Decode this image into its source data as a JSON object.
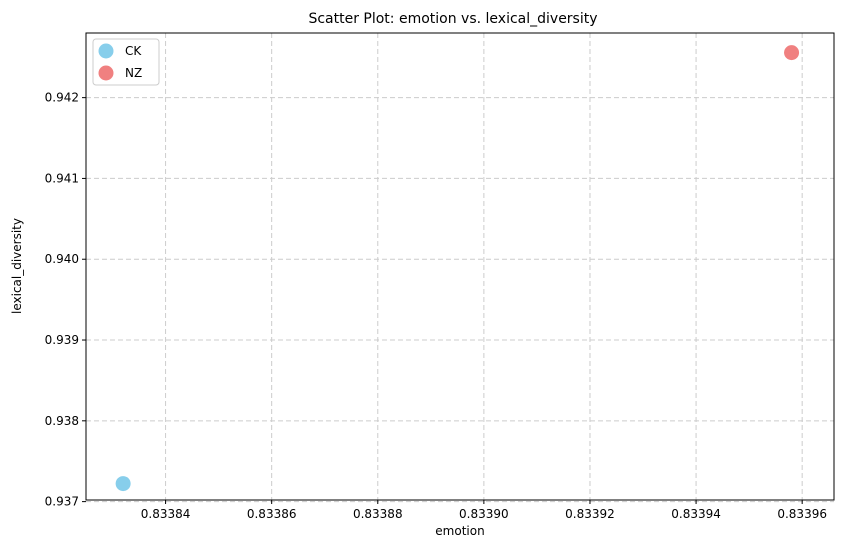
{
  "chart_data": {
    "type": "scatter",
    "title": "Scatter Plot: emotion vs. lexical_diversity",
    "xlabel": "emotion",
    "ylabel": "lexical_diversity",
    "xlim": [
      0.833825,
      0.833966
    ],
    "ylim": [
      0.93702,
      0.9428
    ],
    "xticks": [
      0.83384,
      0.83386,
      0.83388,
      0.8339,
      0.83392,
      0.83394,
      0.83396
    ],
    "xtick_labels": [
      "0.83384",
      "0.83386",
      "0.83388",
      "0.83390",
      "0.83392",
      "0.83394",
      "0.83396"
    ],
    "yticks": [
      0.937,
      0.938,
      0.939,
      0.94,
      0.941,
      0.942
    ],
    "ytick_labels": [
      "0.937",
      "0.938",
      "0.939",
      "0.940",
      "0.941",
      "0.942"
    ],
    "grid": true,
    "legend_position": "top-left",
    "series": [
      {
        "name": "CK",
        "color": "#87ceeb",
        "points": [
          {
            "x": 0.833832,
            "y": 0.937223
          }
        ]
      },
      {
        "name": "NZ",
        "color": "#f08080",
        "points": [
          {
            "x": 0.833958,
            "y": 0.942557
          }
        ]
      }
    ]
  }
}
